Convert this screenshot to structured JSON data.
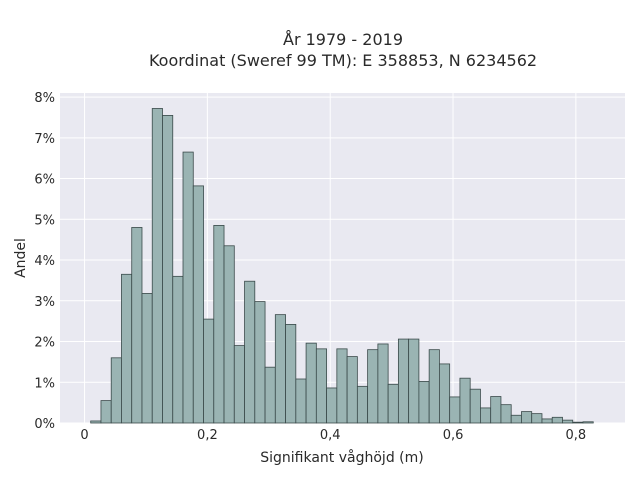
{
  "chart_data": {
    "type": "bar",
    "title_line1": "År 1979 - 2019",
    "title_line2": "Koordinat (Sweref 99 TM): E 358853, N 6234562",
    "xlabel": "Signifikant våghöjd (m)",
    "ylabel": "Andel",
    "xlim": [
      -0.04,
      0.88
    ],
    "ylim": [
      0,
      8.1
    ],
    "bin_start": 0.01,
    "bin_width": 0.0167,
    "values": [
      0.05,
      0.55,
      1.6,
      3.65,
      4.8,
      3.18,
      7.72,
      7.55,
      3.6,
      6.65,
      5.82,
      2.55,
      4.85,
      4.35,
      1.9,
      3.48,
      2.98,
      1.37,
      2.66,
      2.42,
      1.08,
      1.96,
      1.82,
      0.86,
      1.82,
      1.63,
      0.9,
      1.8,
      1.94,
      0.95,
      2.06,
      2.06,
      1.02,
      1.8,
      1.45,
      0.64,
      1.1,
      0.83,
      0.37,
      0.65,
      0.45,
      0.19,
      0.28,
      0.23,
      0.1,
      0.14,
      0.07,
      0.02,
      0.03
    ],
    "x_ticks": [
      0,
      0.2,
      0.4,
      0.6,
      0.8
    ],
    "x_tick_labels": [
      "0",
      "0,2",
      "0,4",
      "0,6",
      "0,8"
    ],
    "y_ticks": [
      0,
      1,
      2,
      3,
      4,
      5,
      6,
      7,
      8
    ],
    "y_tick_labels": [
      "0%",
      "1%",
      "2%",
      "3%",
      "4%",
      "5%",
      "6%",
      "7%",
      "8%"
    ],
    "grid": true,
    "colors": {
      "bar_fill": "#9ab4b3",
      "bar_edge": "#3a4a4a",
      "plot_bg": "#e9e9f1",
      "grid": "#ffffff"
    }
  }
}
